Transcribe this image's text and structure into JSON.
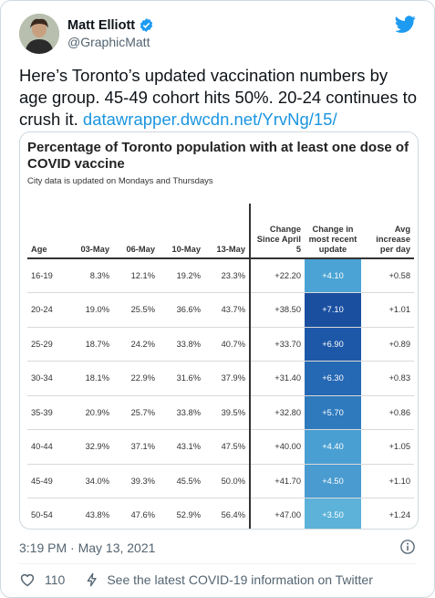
{
  "author": {
    "name": "Matt Elliott",
    "handle": "@GraphicMatt"
  },
  "tweet": {
    "text": "Here’s Toronto’s updated vaccination numbers by age group. 45-49 cohort hits 50%. 20-24 continues to crush it.",
    "link": "datawrapper.dwcdn.net/YrvNg/15/"
  },
  "chart_data": {
    "type": "table",
    "title": "Percentage of Toronto population with at least one dose of COVID vaccine",
    "subtitle": "City data is updated on Mondays and Thursdays",
    "columns": [
      "Age",
      "03-May",
      "06-May",
      "10-May",
      "13-May",
      "Change Since April 5",
      "Change in most recent update",
      "Avg increase per day"
    ],
    "rows": [
      [
        "16-19",
        "8.3%",
        "12.1%",
        "19.2%",
        "23.3%",
        "+22.20",
        "+4.10",
        "+0.58"
      ],
      [
        "20-24",
        "19.0%",
        "25.5%",
        "36.6%",
        "43.7%",
        "+38.50",
        "+7.10",
        "+1.01"
      ],
      [
        "25-29",
        "18.7%",
        "24.2%",
        "33.8%",
        "40.7%",
        "+33.70",
        "+6.90",
        "+0.89"
      ],
      [
        "30-34",
        "18.1%",
        "22.9%",
        "31.6%",
        "37.9%",
        "+31.40",
        "+6.30",
        "+0.83"
      ],
      [
        "35-39",
        "20.9%",
        "25.7%",
        "33.8%",
        "39.5%",
        "+32.80",
        "+5.70",
        "+0.86"
      ],
      [
        "40-44",
        "32.9%",
        "37.1%",
        "43.1%",
        "47.5%",
        "+40.00",
        "+4.40",
        "+1.05"
      ],
      [
        "45-49",
        "34.0%",
        "39.3%",
        "45.5%",
        "50.0%",
        "+41.70",
        "+4.50",
        "+1.10"
      ],
      [
        "50-54",
        "43.8%",
        "47.6%",
        "52.9%",
        "56.4%",
        "+47.00",
        "+3.50",
        "+1.24"
      ]
    ],
    "change_colors": [
      "#4aa3d4",
      "#1a4fa0",
      "#1d58a8",
      "#2568b3",
      "#2f7abd",
      "#4a9fd2",
      "#4a9bd0",
      "#5cb2d8"
    ]
  },
  "footer": {
    "timestamp": "3:19 PM · May 13, 2021"
  },
  "actions": {
    "likes": "110",
    "covid_info": "See the latest COVID-19 information on Twitter"
  },
  "colors": {
    "link": "#1b95e0",
    "twitter_blue": "#1d9bf0",
    "muted": "#536471"
  }
}
